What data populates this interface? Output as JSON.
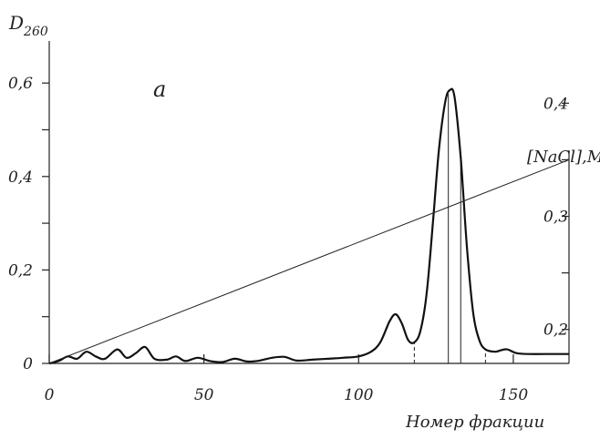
{
  "chart_data": {
    "type": "line",
    "panel_label": "a",
    "xlabel": "Номер фракции",
    "ylabel_left": "D",
    "ylabel_left_sub": "260",
    "ylabel_right": "[NaCl],M",
    "xlim": [
      0,
      168
    ],
    "ylim_left": [
      0,
      0.69
    ],
    "ylim_right": [
      0.17,
      0.455
    ],
    "x_ticks": [
      0,
      50,
      100,
      150
    ],
    "x_tick_labels": [
      "0",
      "50",
      "100",
      "150"
    ],
    "y_left_ticks": [
      0,
      0.2,
      0.4,
      0.6
    ],
    "y_left_tick_labels": [
      "0",
      "0,2",
      "0,4",
      "0,6"
    ],
    "y_left_minor_ticks": [
      0.1,
      0.3,
      0.5
    ],
    "y_right_ticks": [
      0.2,
      0.3,
      0.4
    ],
    "y_right_tick_labels": [
      "0,2",
      "0,3",
      "0,4"
    ],
    "y_right_minor_ticks": [
      0.25,
      0.35
    ],
    "series": [
      {
        "axis": "left",
        "points": [
          [
            0,
            0.0
          ],
          [
            3,
            0.005
          ],
          [
            6,
            0.015
          ],
          [
            9,
            0.01
          ],
          [
            12,
            0.025
          ],
          [
            15,
            0.015
          ],
          [
            18,
            0.01
          ],
          [
            22,
            0.03
          ],
          [
            25,
            0.012
          ],
          [
            28,
            0.022
          ],
          [
            31,
            0.035
          ],
          [
            34,
            0.01
          ],
          [
            38,
            0.008
          ],
          [
            41,
            0.015
          ],
          [
            44,
            0.005
          ],
          [
            48,
            0.012
          ],
          [
            52,
            0.005
          ],
          [
            56,
            0.003
          ],
          [
            60,
            0.01
          ],
          [
            64,
            0.004
          ],
          [
            68,
            0.006
          ],
          [
            72,
            0.012
          ],
          [
            76,
            0.014
          ],
          [
            80,
            0.006
          ],
          [
            85,
            0.008
          ],
          [
            90,
            0.01
          ],
          [
            95,
            0.012
          ],
          [
            100,
            0.015
          ],
          [
            104,
            0.025
          ],
          [
            107,
            0.045
          ],
          [
            110,
            0.09
          ],
          [
            112,
            0.105
          ],
          [
            114,
            0.085
          ],
          [
            116,
            0.05
          ],
          [
            118,
            0.045
          ],
          [
            120,
            0.07
          ],
          [
            122,
            0.15
          ],
          [
            124,
            0.3
          ],
          [
            126,
            0.46
          ],
          [
            128,
            0.56
          ],
          [
            129.5,
            0.585
          ],
          [
            131,
            0.57
          ],
          [
            133,
            0.44
          ],
          [
            135,
            0.25
          ],
          [
            137,
            0.11
          ],
          [
            139,
            0.05
          ],
          [
            141,
            0.03
          ],
          [
            144,
            0.025
          ],
          [
            146,
            0.028
          ],
          [
            148,
            0.03
          ],
          [
            151,
            0.022
          ],
          [
            155,
            0.02
          ],
          [
            160,
            0.02
          ],
          [
            168,
            0.02
          ]
        ]
      },
      {
        "axis": "right",
        "points": [
          [
            0,
            0.17
          ],
          [
            168,
            0.35
          ]
        ]
      }
    ],
    "vertical_lines": [
      {
        "x": 129,
        "style": "solid"
      },
      {
        "x": 133,
        "style": "solid"
      },
      {
        "x": 118,
        "style": "dashed"
      },
      {
        "x": 141,
        "style": "dashed"
      }
    ]
  }
}
